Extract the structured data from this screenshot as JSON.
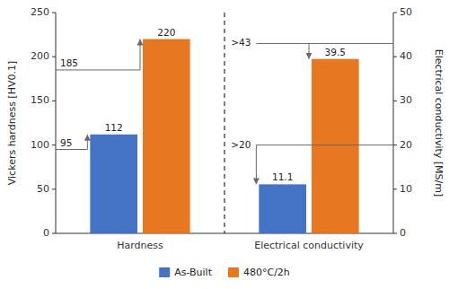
{
  "chart_data": {
    "type": "bar",
    "categories": [
      "Hardness",
      "Electrical conductivity"
    ],
    "ylabel": "Vickers hardness [HV0.1]",
    "y2label": "Electrical conductivity [MS/m]",
    "ylim": [
      0,
      250
    ],
    "yticks": [
      0,
      50,
      100,
      150,
      200,
      250
    ],
    "y2lim": [
      0,
      50
    ],
    "y2ticks": [
      0,
      10,
      20,
      30,
      40,
      50
    ],
    "grid": false,
    "legend": "bottom",
    "data_labels": true,
    "series": [
      {
        "name": "As-Built",
        "color": "#4472C4",
        "values": [
          112,
          null
        ],
        "reference": 95,
        "reference_label": "95"
      },
      {
        "name": "480°C/2h",
        "color": "#E87722",
        "values": [
          220,
          null
        ],
        "reference": 185,
        "reference_label": "185"
      },
      {
        "name": "As-Built",
        "color": "#4472C4",
        "values": [
          null,
          11.1
        ],
        "axis": "y2",
        "reference": 20,
        "reference_label": ">20"
      },
      {
        "name": "480°C/2h",
        "color": "#E87722",
        "values": [
          null,
          39.5
        ],
        "axis": "y2",
        "reference": 43,
        "reference_label": ">43"
      }
    ]
  }
}
